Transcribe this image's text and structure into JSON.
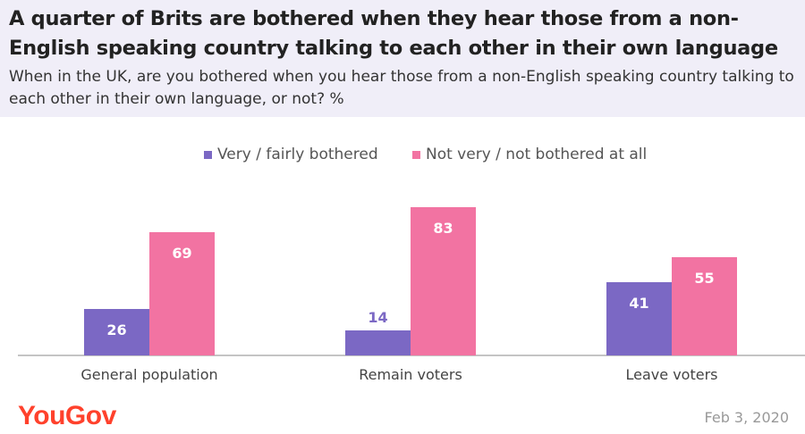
{
  "header": {
    "title": "A quarter of Brits are bothered when they hear those from a non-English speaking country talking to each other in their own language",
    "subtitle": "When in the UK, are you bothered when you hear those from a non-English speaking country talking to each other in their own language, or not? %"
  },
  "colors": {
    "header_bg": "#f0eef8",
    "series_1": "#7b68c4",
    "series_2": "#f273a2",
    "brand": "#ff412c"
  },
  "chart_data": {
    "type": "bar",
    "categories": [
      "General population",
      "Remain voters",
      "Leave voters"
    ],
    "series": [
      {
        "name": "Very / fairly bothered",
        "values": [
          26,
          14,
          41
        ],
        "color": "#7b68c4"
      },
      {
        "name": "Not very / not bothered at all",
        "values": [
          69,
          83,
          55
        ],
        "color": "#f273a2"
      }
    ],
    "ylim": [
      0,
      100
    ],
    "legend_position": "top-center",
    "grid": false
  },
  "footer": {
    "logo": "YouGov",
    "date": "Feb 3, 2020"
  }
}
